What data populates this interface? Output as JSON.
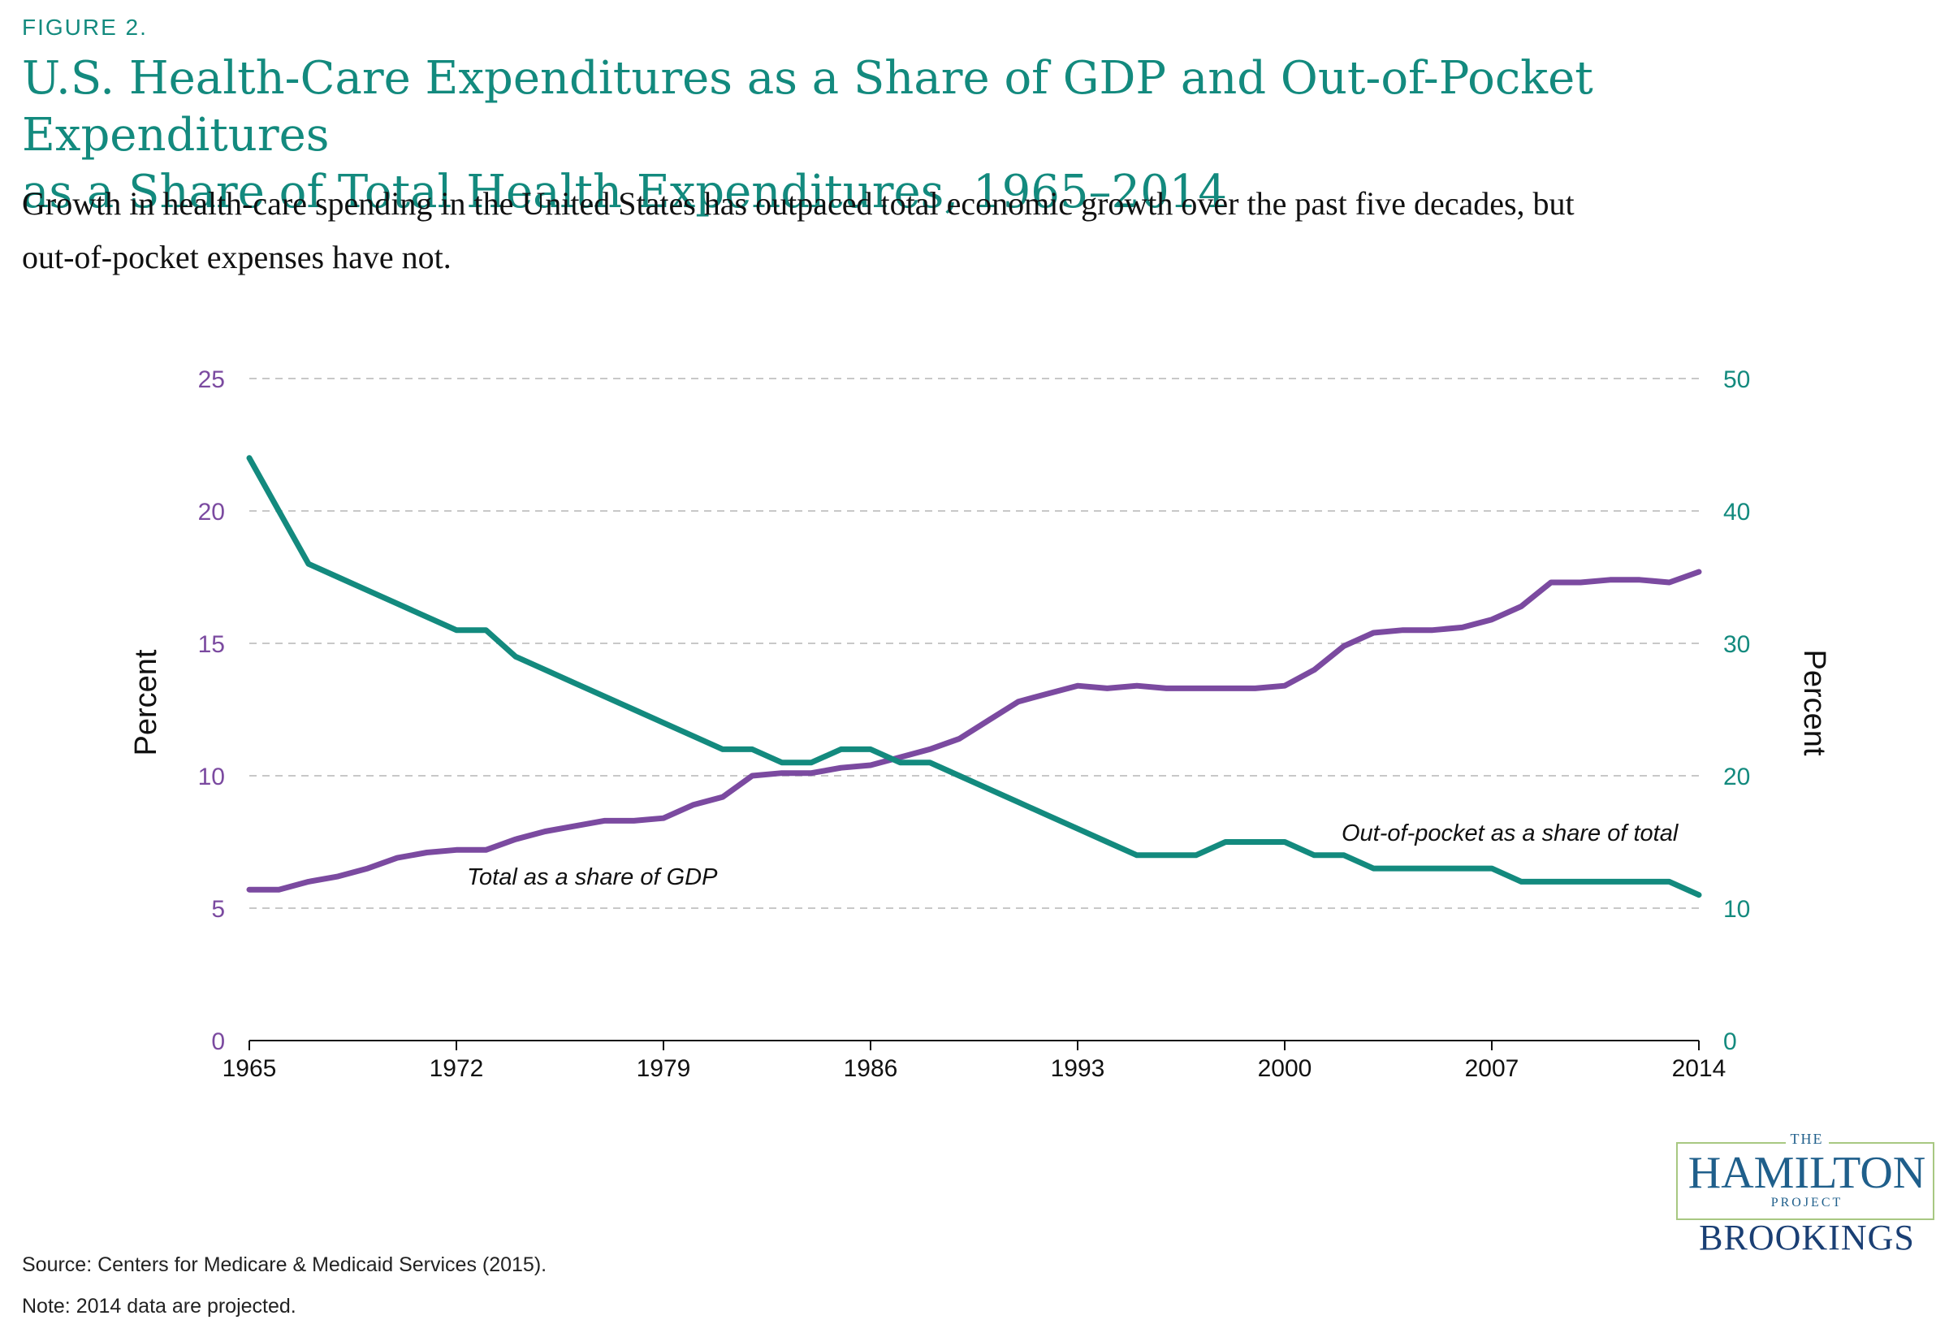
{
  "figure_label": "FIGURE 2.",
  "title_line1": "U.S. Health-Care Expenditures as a Share of GDP and Out-of-Pocket Expenditures",
  "title_line2": "as a Share of Total Health Expenditures, 1965–2014",
  "subtitle_line1": "Growth in health-care spending in the United States has outpaced total economic growth over the past five decades, but",
  "subtitle_line2": "out-of-pocket expenses have not.",
  "source": "Source: Centers for Medicare & Medicaid Services (2015).",
  "note": "Note: 2014 data are projected.",
  "logo": {
    "the": "THE",
    "main": "HAMILTON",
    "project": "PROJECT",
    "sub": "BROOKINGS"
  },
  "colors": {
    "accent": "#138a7e",
    "purple": "#7b4aa0",
    "teal": "#138a7e",
    "grid": "#c8c8c8",
    "axis": "#111111"
  },
  "chart_data": {
    "type": "line",
    "grid": true,
    "x": [
      1965,
      1966,
      1967,
      1968,
      1969,
      1970,
      1971,
      1972,
      1973,
      1974,
      1975,
      1976,
      1977,
      1978,
      1979,
      1980,
      1981,
      1982,
      1983,
      1984,
      1985,
      1986,
      1987,
      1988,
      1989,
      1990,
      1991,
      1992,
      1993,
      1994,
      1995,
      1996,
      1997,
      1998,
      1999,
      2000,
      2001,
      2002,
      2003,
      2004,
      2005,
      2006,
      2007,
      2008,
      2009,
      2010,
      2011,
      2012,
      2013,
      2014
    ],
    "x_ticks": [
      "1965",
      "1972",
      "1979",
      "1986",
      "1993",
      "2000",
      "2007",
      "2014"
    ],
    "xlim": [
      1965,
      2014
    ],
    "y_left": {
      "label": "Percent",
      "lim": [
        0,
        25
      ],
      "ticks": [
        "0",
        "5",
        "10",
        "15",
        "20",
        "25"
      ]
    },
    "y_right": {
      "label": "Percent",
      "lim": [
        0,
        50
      ],
      "ticks": [
        "0",
        "10",
        "20",
        "30",
        "40",
        "50"
      ]
    },
    "series": [
      {
        "name": "Total as a share of GDP",
        "axis": "left",
        "color": "#7b4aa0",
        "values": [
          5.7,
          5.7,
          6.0,
          6.2,
          6.5,
          6.9,
          7.1,
          7.2,
          7.2,
          7.6,
          7.9,
          8.1,
          8.3,
          8.3,
          8.4,
          8.9,
          9.2,
          10.0,
          10.1,
          10.1,
          10.3,
          10.4,
          10.7,
          11.0,
          11.4,
          12.1,
          12.8,
          13.1,
          13.4,
          13.3,
          13.4,
          13.3,
          13.3,
          13.3,
          13.3,
          13.4,
          14.0,
          14.9,
          15.4,
          15.5,
          15.5,
          15.6,
          15.9,
          16.4,
          17.3,
          17.3,
          17.4,
          17.4,
          17.3,
          17.7
        ]
      },
      {
        "name": "Out-of-pocket as a share of total",
        "axis": "right",
        "color": "#138a7e",
        "values": [
          44,
          40,
          36,
          35,
          34,
          33,
          32,
          31,
          31,
          29,
          28,
          27,
          26,
          25,
          24,
          23,
          22,
          22,
          21,
          21,
          22,
          22,
          21,
          21,
          20,
          19,
          18,
          17,
          16,
          15,
          14,
          14,
          14,
          15,
          15,
          15,
          14,
          14,
          13,
          13,
          13,
          13,
          13,
          12,
          12,
          12,
          12,
          12,
          12,
          11
        ]
      }
    ]
  }
}
